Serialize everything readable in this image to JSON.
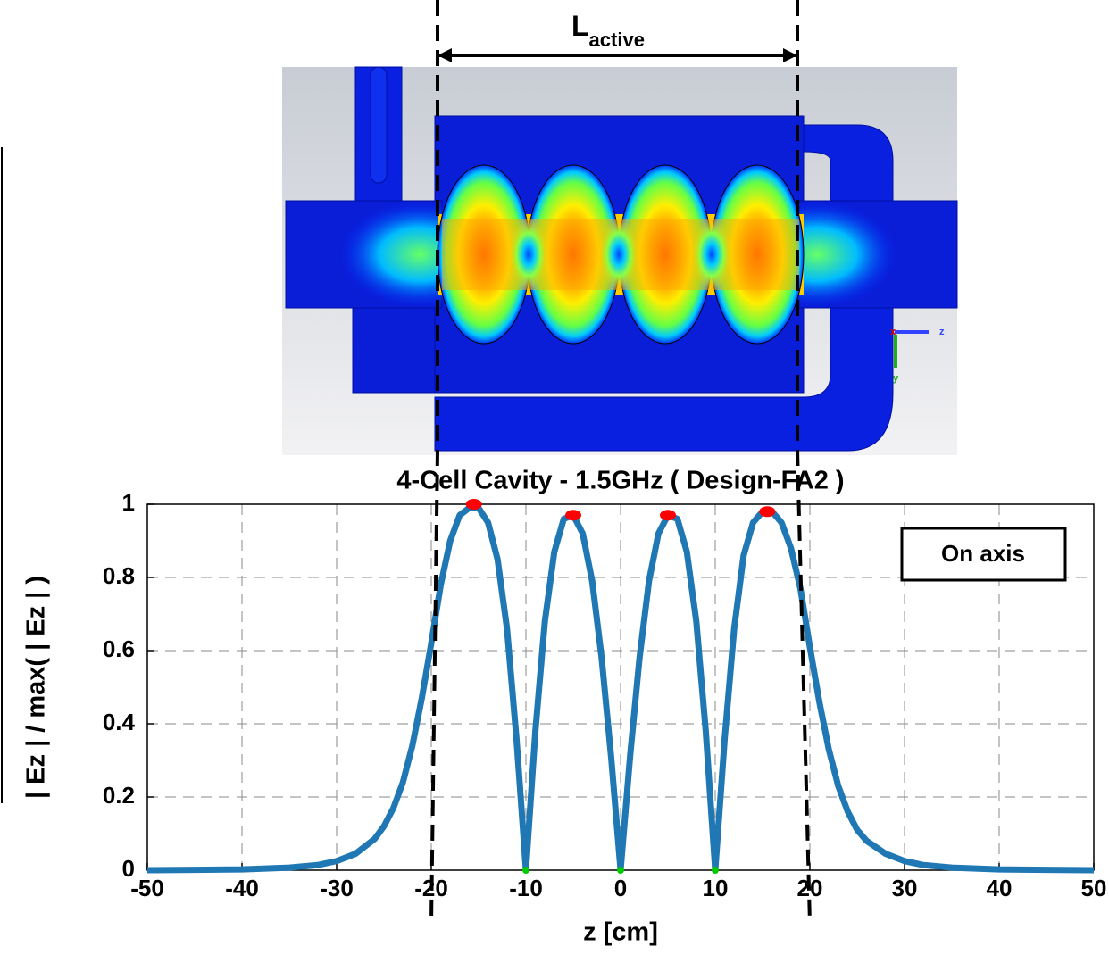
{
  "chart_data": {
    "type": "line",
    "title": "4-Cell Cavity - 1.5GHz ( Design-FA2 )",
    "x_label": "z [cm]",
    "y_label": "| Ez | / max( | Ez | )",
    "annotation": "On axis",
    "length_label": "L",
    "length_subscript": "active",
    "axis_triad": [
      "x",
      "z",
      "y"
    ],
    "active_bounds": [
      -20,
      20
    ],
    "x": [
      -50,
      -45,
      -40,
      -35,
      -32,
      -30,
      -28,
      -26,
      -25,
      -24,
      -23,
      -22,
      -21,
      -20,
      -19,
      -18,
      -17,
      -16,
      -15,
      -14,
      -13,
      -12,
      -11,
      -10,
      -9,
      -8,
      -7,
      -6,
      -5,
      -4,
      -3,
      -2,
      -1,
      0,
      1,
      2,
      3,
      4,
      5,
      6,
      7,
      8,
      9,
      10,
      11,
      12,
      13,
      14,
      15,
      16,
      17,
      18,
      19,
      20,
      21,
      22,
      23,
      24,
      25,
      26,
      28,
      30,
      32,
      35,
      40,
      45,
      50
    ],
    "series": [
      {
        "color": "#1f77b4",
        "values": [
          0,
          0.001,
          0.002,
          0.007,
          0.014,
          0.025,
          0.045,
          0.085,
          0.12,
          0.17,
          0.24,
          0.34,
          0.47,
          0.62,
          0.78,
          0.9,
          0.97,
          0.99,
          0.99,
          0.95,
          0.85,
          0.66,
          0.36,
          0,
          0.38,
          0.68,
          0.87,
          0.96,
          0.97,
          0.92,
          0.79,
          0.58,
          0.31,
          0,
          0.31,
          0.58,
          0.79,
          0.92,
          0.97,
          0.96,
          0.87,
          0.68,
          0.38,
          0,
          0.36,
          0.66,
          0.86,
          0.95,
          0.98,
          0.98,
          0.95,
          0.88,
          0.77,
          0.61,
          0.46,
          0.33,
          0.23,
          0.16,
          0.11,
          0.08,
          0.045,
          0.025,
          0.014,
          0.007,
          0.002,
          0.001,
          0
        ]
      },
      {
        "color": "#ff0000",
        "marker": "peak",
        "x": [
          -15.5,
          -5,
          5,
          15.5
        ],
        "values": [
          1,
          0.97,
          0.97,
          0.98
        ]
      },
      {
        "color": "#00cc00",
        "marker": "zero",
        "x": [
          -10,
          0,
          10
        ],
        "values": [
          0,
          0,
          0
        ]
      }
    ],
    "xlim": [
      -50,
      50
    ],
    "xticks": [
      -50,
      -40,
      -30,
      -20,
      -10,
      0,
      10,
      20,
      30,
      40,
      50
    ],
    "ylim": [
      0,
      1
    ],
    "yticks": [
      0,
      0.2,
      0.4,
      0.6,
      0.8,
      1
    ],
    "grid": true
  }
}
